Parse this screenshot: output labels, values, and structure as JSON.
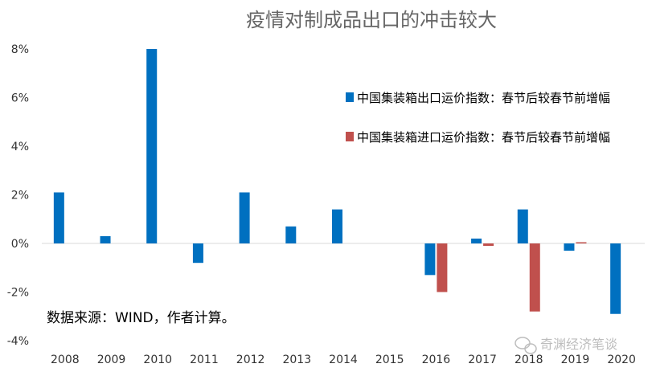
{
  "chart_data": {
    "type": "bar",
    "title": "疫情对制成品出口的冲击较大",
    "categories": [
      "2008",
      "2009",
      "2010",
      "2011",
      "2012",
      "2013",
      "2014",
      "2015",
      "2016",
      "2017",
      "2018",
      "2019",
      "2020"
    ],
    "series": [
      {
        "name": "中国集装箱出口运价指数：春节后较春节前增幅",
        "color": "#0070C0",
        "values": [
          2.1,
          0.3,
          8.0,
          -0.8,
          2.1,
          0.7,
          1.4,
          0,
          -1.3,
          0.2,
          1.4,
          -0.3,
          -2.9
        ]
      },
      {
        "name": "中国集装箱进口运价指数：春节后较春节前增幅",
        "color": "#C0504D",
        "values": [
          0,
          0,
          0,
          0,
          0,
          0,
          0,
          0,
          -2.0,
          -0.1,
          -2.8,
          0.05,
          0
        ]
      }
    ],
    "ylim": [
      -4,
      8
    ],
    "yticks": [
      -4,
      -2,
      0,
      2,
      4,
      6,
      8
    ],
    "ytick_labels": [
      "-4%",
      "-2%",
      "0%",
      "2%",
      "4%",
      "6%",
      "8%"
    ],
    "xlabel": "",
    "ylabel": "",
    "grid": false,
    "legend_position": "top-right"
  },
  "source_note": "数据来源：WIND，作者计算。",
  "watermark": "奇渊经济笔谈",
  "colors": {
    "axis": "#d9d9d9",
    "text": "#333333"
  }
}
